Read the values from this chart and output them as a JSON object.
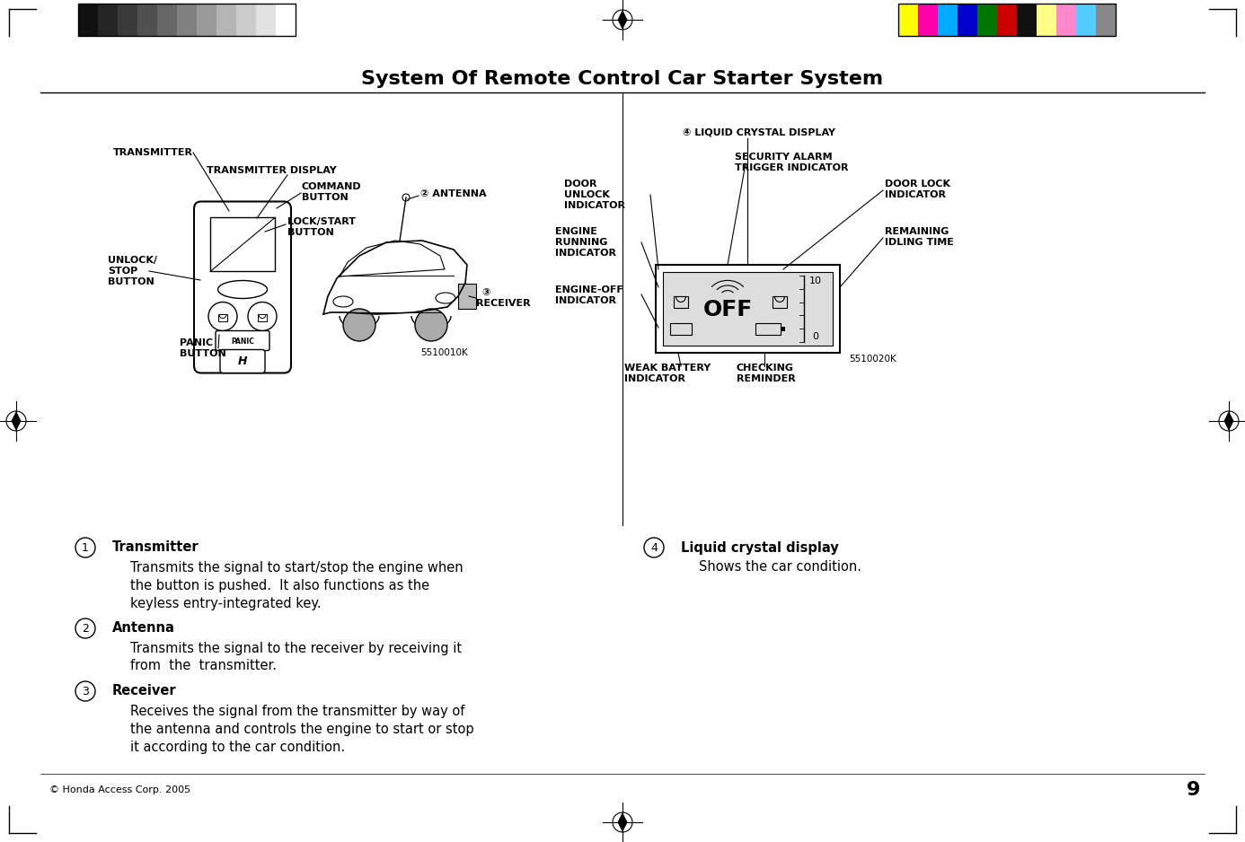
{
  "title": "System Of Remote Control Car Starter System",
  "page_num": "9",
  "copyright": "© Honda Access Corp. 2005",
  "bg_color": "#ffffff",
  "title_fontsize": 16,
  "body_fontsize": 10.5,
  "label_fontsize": 8,
  "color_bars_left": [
    "#111111",
    "#252525",
    "#3a3a3a",
    "#505050",
    "#676767",
    "#808080",
    "#9a9a9a",
    "#b5b5b5",
    "#cccccc",
    "#e2e2e2",
    "#ffffff"
  ],
  "color_bars_right": [
    "#ffff00",
    "#ff00aa",
    "#00aaff",
    "#0000cc",
    "#007700",
    "#cc0000",
    "#111111",
    "#ffff88",
    "#ff88cc",
    "#55ccff",
    "#888888"
  ],
  "section1_items": [
    {
      "num": "1",
      "title": "Transmitter",
      "body": "Transmits the signal to start/stop the engine when\nthe button is pushed.  It also functions as the\nkeyless entry-integrated key."
    },
    {
      "num": "2",
      "title": "Antenna",
      "body": "Transmits the signal to the receiver by receiving it\nfrom  the  transmitter."
    },
    {
      "num": "3",
      "title": "Receiver",
      "body": "Receives the signal from the transmitter by way of\nthe antenna and controls the engine to start or stop\nit according to the car condition."
    }
  ],
  "section2_items": [
    {
      "num": "4",
      "title": "Liquid crystal display",
      "body": "Shows the car condition."
    }
  ]
}
